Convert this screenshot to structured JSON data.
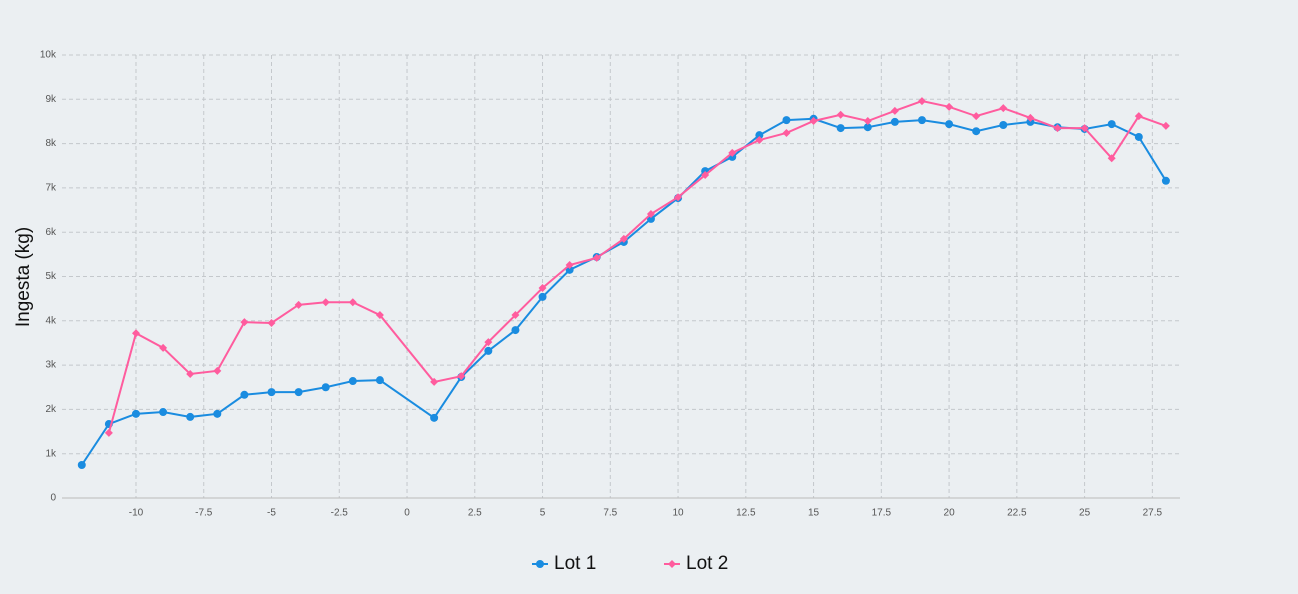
{
  "chart_data": {
    "type": "line",
    "y_label": "Ingesta (kg)",
    "xlim": [
      -12.73,
      28.52
    ],
    "xticks": [
      -10,
      -7.5,
      -5,
      -2.5,
      0,
      2.5,
      5,
      7.5,
      10,
      12.5,
      15,
      17.5,
      20,
      22.5,
      25,
      27.5
    ],
    "ylim": [
      0,
      10000
    ],
    "yticks": [
      0,
      {
        "value": 1000,
        "label": "1k"
      },
      {
        "value": 2000,
        "label": "2k"
      },
      {
        "value": 3000,
        "label": "3k"
      },
      {
        "value": 4000,
        "label": "4k"
      },
      {
        "value": 5000,
        "label": "5k"
      },
      {
        "value": 6000,
        "label": "6k"
      },
      {
        "value": 7000,
        "label": "7k"
      },
      {
        "value": 8000,
        "label": "8k"
      },
      {
        "value": 9000,
        "label": "9k"
      },
      {
        "value": 10000,
        "label": "10k"
      }
    ],
    "grid": true,
    "legend": "bottom",
    "series": [
      {
        "name": "Lot 1",
        "color": "#1a8ce0",
        "marker": "circle",
        "x": [
          -12,
          -11,
          -10,
          -9,
          -8,
          -7,
          -6,
          -5,
          -4,
          -3,
          -2,
          -1,
          1,
          2,
          3,
          4,
          5,
          6,
          7,
          8,
          9,
          10,
          11,
          12,
          13,
          14,
          15,
          16,
          17,
          18,
          19,
          20,
          21,
          22,
          23,
          24,
          25,
          26,
          27,
          28
        ],
        "values": [
          745,
          1670,
          1900,
          1940,
          1830,
          1900,
          2330,
          2390,
          2390,
          2500,
          2640,
          2660,
          1810,
          2730,
          3320,
          3790,
          4540,
          5150,
          5440,
          5780,
          6300,
          6770,
          7380,
          7700,
          8190,
          8530,
          8560,
          8350,
          8370,
          8490,
          8530,
          8440,
          8280,
          8420,
          8490,
          8370,
          8330,
          8440,
          8150,
          7160
        ]
      },
      {
        "name": "Lot 2",
        "color": "#ff5c9e",
        "marker": "diamond",
        "x": [
          -11,
          -10,
          -9,
          -8,
          -7,
          -6,
          -5,
          -4,
          -3,
          -2,
          -1,
          1,
          2,
          3,
          4,
          5,
          6,
          7,
          8,
          9,
          10,
          11,
          12,
          13,
          14,
          15,
          16,
          17,
          18,
          19,
          20,
          21,
          22,
          23,
          24,
          25,
          26,
          27,
          28
        ],
        "values": [
          1470,
          3720,
          3390,
          2800,
          2870,
          3970,
          3950,
          4360,
          4420,
          4420,
          4130,
          2620,
          2750,
          3520,
          4130,
          4740,
          5260,
          5420,
          5850,
          6410,
          6790,
          7290,
          7790,
          8080,
          8240,
          8510,
          8650,
          8510,
          8740,
          8960,
          8830,
          8620,
          8800,
          8580,
          8350,
          8350,
          7670,
          8620,
          8400
        ]
      }
    ]
  }
}
